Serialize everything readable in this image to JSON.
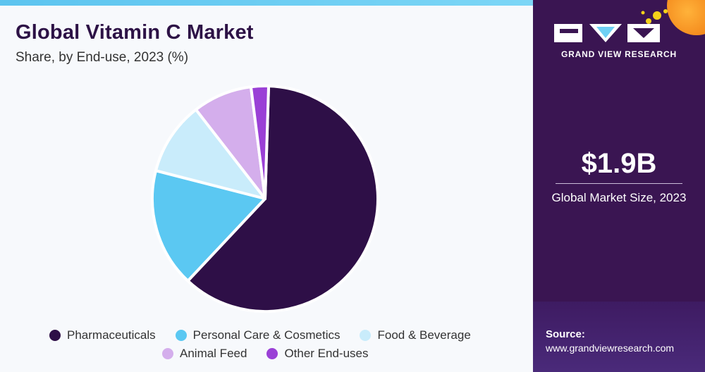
{
  "header": {
    "title": "Global Vitamin C Market",
    "subtitle": "Share, by End-use, 2023 (%)"
  },
  "sidebar": {
    "brand": "GRAND VIEW RESEARCH",
    "stat_value": "$1.9B",
    "stat_label": "Global Market Size, 2023",
    "source_label": "Source:",
    "source_url": "www.grandviewresearch.com"
  },
  "colors": {
    "pharmaceuticals": "#2e0f47",
    "personal_care": "#5bc8f2",
    "food_beverage": "#c9ecfb",
    "animal_feed": "#d4aeec",
    "other": "#9a40d6",
    "sidebar_bg": "#3a1552"
  },
  "chart_data": {
    "type": "pie",
    "title": "Global Vitamin C Market",
    "subtitle": "Share, by End-use, 2023 (%)",
    "legend_position": "bottom",
    "categories": [
      "Pharmaceuticals",
      "Personal Care & Cosmetics",
      "Food & Beverage",
      "Animal Feed",
      "Other End-uses"
    ],
    "values": [
      61.5,
      17.0,
      10.5,
      8.5,
      2.5
    ],
    "colors": [
      "#2e0f47",
      "#5bc8f2",
      "#c9ecfb",
      "#d4aeec",
      "#9a40d6"
    ]
  }
}
